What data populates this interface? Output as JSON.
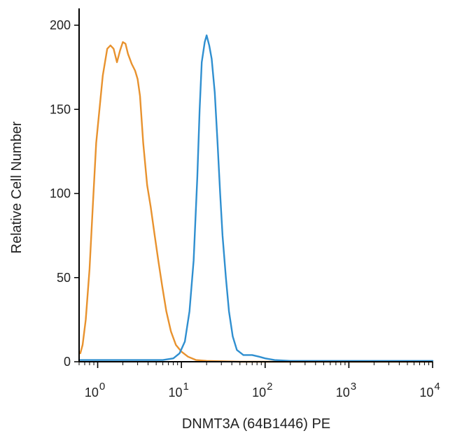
{
  "chart_data": {
    "type": "line",
    "xlabel": "DNMT3A (64B1446) PE",
    "ylabel": "Relative Cell Number",
    "x_scale": "log",
    "xlim": [
      0.6,
      10000
    ],
    "ylim": [
      0,
      210
    ],
    "x_ticks": [
      {
        "value": 1,
        "base": "10",
        "exp": "0"
      },
      {
        "value": 10,
        "base": "10",
        "exp": "1"
      },
      {
        "value": 100,
        "base": "10",
        "exp": "2"
      },
      {
        "value": 1000,
        "base": "10",
        "exp": "3"
      },
      {
        "value": 10000,
        "base": "10",
        "exp": "4"
      }
    ],
    "y_ticks": [
      0,
      50,
      100,
      150,
      200
    ],
    "grid": false,
    "series": [
      {
        "color": "#e8922e",
        "points": [
          [
            0.62,
            5
          ],
          [
            0.66,
            10
          ],
          [
            0.72,
            25
          ],
          [
            0.8,
            55
          ],
          [
            0.88,
            95
          ],
          [
            0.96,
            130
          ],
          [
            1.05,
            150
          ],
          [
            1.15,
            170
          ],
          [
            1.3,
            186
          ],
          [
            1.42,
            188
          ],
          [
            1.55,
            186
          ],
          [
            1.7,
            178
          ],
          [
            1.85,
            185
          ],
          [
            2.0,
            190
          ],
          [
            2.15,
            189
          ],
          [
            2.3,
            183
          ],
          [
            2.55,
            177
          ],
          [
            2.8,
            173
          ],
          [
            3.0,
            168
          ],
          [
            3.2,
            158
          ],
          [
            3.5,
            130
          ],
          [
            3.9,
            105
          ],
          [
            4.3,
            92
          ],
          [
            4.8,
            75
          ],
          [
            5.3,
            60
          ],
          [
            5.9,
            45
          ],
          [
            6.6,
            30
          ],
          [
            7.5,
            18
          ],
          [
            8.6,
            10
          ],
          [
            10,
            6
          ],
          [
            12,
            3
          ],
          [
            15,
            1
          ],
          [
            20,
            0.5
          ],
          [
            50,
            0
          ],
          [
            100,
            0
          ],
          [
            1000,
            0
          ],
          [
            10000,
            0
          ]
        ]
      },
      {
        "color": "#2f8fd0",
        "points": [
          [
            0.6,
            1
          ],
          [
            1,
            1
          ],
          [
            3,
            1
          ],
          [
            6,
            1
          ],
          [
            8,
            2
          ],
          [
            9.5,
            5
          ],
          [
            11,
            12
          ],
          [
            12.5,
            30
          ],
          [
            14,
            60
          ],
          [
            15.5,
            110
          ],
          [
            16.5,
            150
          ],
          [
            17.5,
            178
          ],
          [
            19,
            190
          ],
          [
            20,
            194
          ],
          [
            21.5,
            188
          ],
          [
            23,
            180
          ],
          [
            25,
            160
          ],
          [
            27,
            130
          ],
          [
            29,
            100
          ],
          [
            31,
            75
          ],
          [
            34,
            50
          ],
          [
            37,
            30
          ],
          [
            41,
            15
          ],
          [
            46,
            7
          ],
          [
            55,
            4
          ],
          [
            70,
            4
          ],
          [
            85,
            3
          ],
          [
            100,
            2
          ],
          [
            130,
            1
          ],
          [
            200,
            0.5
          ],
          [
            1000,
            0.5
          ],
          [
            10000,
            0.5
          ]
        ]
      }
    ]
  }
}
